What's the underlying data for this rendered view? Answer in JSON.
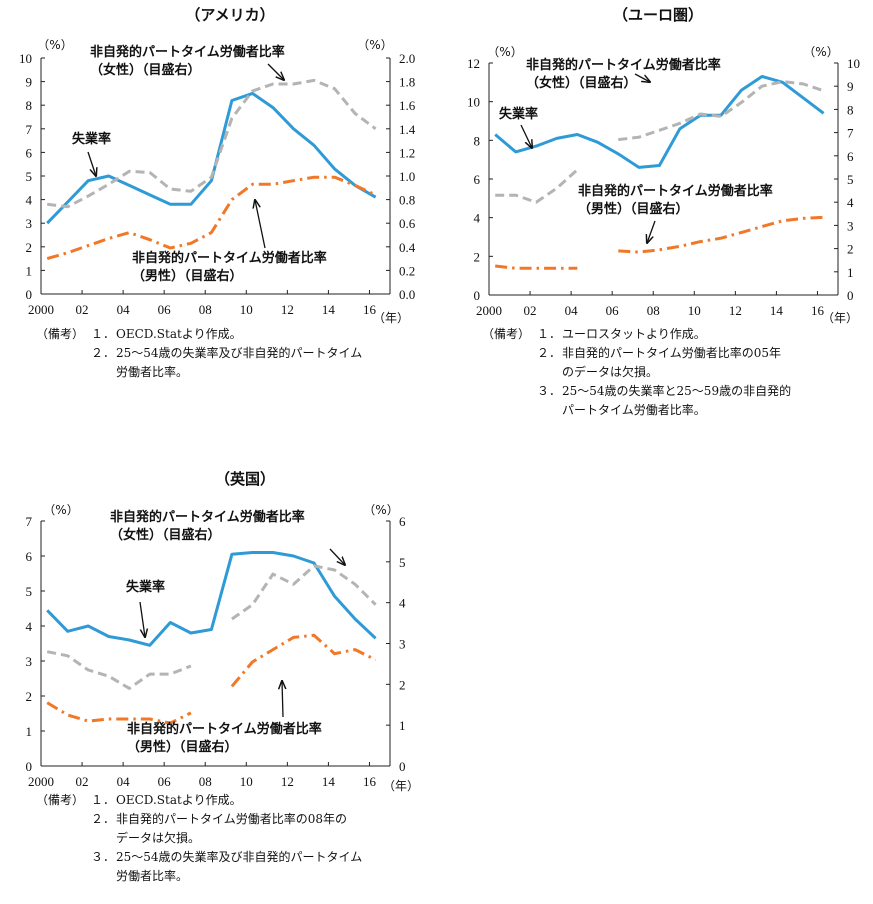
{
  "colors": {
    "unemployment": "#2e9bd6",
    "female": "#b4b4b4",
    "male": "#f07828",
    "axis": "#222222"
  },
  "chart_data": [
    {
      "id": "us",
      "type": "line",
      "title": "（アメリカ）",
      "xlabel_unit": "（年）",
      "left_unit": "（%）",
      "right_unit": "（%）",
      "xlim": [
        2000,
        2017
      ],
      "x_ticks": [
        2000,
        2002,
        2004,
        2006,
        2008,
        2010,
        2012,
        2014,
        2016
      ],
      "x_tick_labels": [
        "2000",
        "02",
        "04",
        "06",
        "08",
        "10",
        "12",
        "14",
        "16"
      ],
      "left_ylim": [
        0,
        10
      ],
      "left_ticks": [
        0,
        1,
        2,
        3,
        4,
        5,
        6,
        7,
        8,
        9,
        10
      ],
      "left_tick_labels": [
        "0",
        "1",
        "2",
        "3",
        "4",
        "5",
        "6",
        "7",
        "8",
        "9",
        "10"
      ],
      "right_ylim": [
        0,
        2
      ],
      "right_ticks": [
        0,
        0.2,
        0.4,
        0.6,
        0.8,
        1.0,
        1.2,
        1.4,
        1.6,
        1.8,
        2.0
      ],
      "right_tick_labels": [
        "0.0",
        "0.2",
        "0.4",
        "0.6",
        "0.8",
        "1.0",
        "1.2",
        "1.4",
        "1.6",
        "1.8",
        "2.0"
      ],
      "series": [
        {
          "name": "失業率",
          "axis": "left",
          "style": "solid",
          "points": [
            [
              2000.3,
              3.0
            ],
            [
              2001.3,
              3.9
            ],
            [
              2002.3,
              4.8
            ],
            [
              2003.3,
              5.0
            ],
            [
              2004.3,
              4.6
            ],
            [
              2005.3,
              4.2
            ],
            [
              2006.3,
              3.8
            ],
            [
              2007.3,
              3.8
            ],
            [
              2008.3,
              4.8
            ],
            [
              2009.3,
              8.2
            ],
            [
              2010.3,
              8.5
            ],
            [
              2011.3,
              7.9
            ],
            [
              2012.3,
              7.0
            ],
            [
              2013.3,
              6.3
            ],
            [
              2014.3,
              5.3
            ],
            [
              2015.3,
              4.6
            ],
            [
              2016.3,
              4.1
            ]
          ]
        },
        {
          "name": "非自発的パートタイム労働者比率（女性）",
          "axis": "right",
          "style": "dashed",
          "points": [
            [
              2000.3,
              0.76
            ],
            [
              2001.3,
              0.74
            ],
            [
              2002.3,
              0.83
            ],
            [
              2003.3,
              0.93
            ],
            [
              2004.3,
              1.04
            ],
            [
              2005.3,
              1.03
            ],
            [
              2006.3,
              0.89
            ],
            [
              2007.3,
              0.87
            ],
            [
              2008.3,
              0.99
            ],
            [
              2009.3,
              1.49
            ],
            [
              2010.3,
              1.72
            ],
            [
              2011.3,
              1.78
            ],
            [
              2012.3,
              1.78
            ],
            [
              2013.3,
              1.81
            ],
            [
              2014.3,
              1.74
            ],
            [
              2015.3,
              1.53
            ],
            [
              2016.3,
              1.4
            ]
          ]
        },
        {
          "name": "非自発的パートタイム労働者比率（男性）",
          "axis": "right",
          "style": "dashdot",
          "points": [
            [
              2000.3,
              0.3
            ],
            [
              2001.3,
              0.35
            ],
            [
              2002.3,
              0.41
            ],
            [
              2003.3,
              0.47
            ],
            [
              2004.3,
              0.52
            ],
            [
              2005.3,
              0.46
            ],
            [
              2006.3,
              0.39
            ],
            [
              2007.3,
              0.43
            ],
            [
              2008.3,
              0.52
            ],
            [
              2009.3,
              0.8
            ],
            [
              2010.3,
              0.93
            ],
            [
              2011.3,
              0.93
            ],
            [
              2012.3,
              0.96
            ],
            [
              2013.3,
              0.99
            ],
            [
              2014.3,
              0.99
            ],
            [
              2015.3,
              0.92
            ],
            [
              2016.3,
              0.84
            ]
          ]
        }
      ],
      "annotations": [
        {
          "lines": [
            "非自発的パートタイム労働者比率",
            "（女性）（目盛右）"
          ]
        },
        {
          "lines": [
            "失業率"
          ]
        },
        {
          "lines": [
            "非自発的パートタイム労働者比率",
            "（男性）（目盛右）"
          ]
        }
      ],
      "notes": [
        {
          "label": "（備考）",
          "num": "１．",
          "text": "OECD.Statより作成。",
          "cont": ""
        },
        {
          "label": "",
          "num": "２．",
          "text": "25～54歳の失業率及び非自発的パートタイム",
          "cont": "労働者比率。"
        }
      ]
    },
    {
      "id": "eu",
      "type": "line",
      "title": "（ユーロ圏）",
      "xlabel_unit": "（年）",
      "left_unit": "（%）",
      "right_unit": "（%）",
      "xlim": [
        2000,
        2017
      ],
      "x_ticks": [
        2000,
        2002,
        2004,
        2006,
        2008,
        2010,
        2012,
        2014,
        2016
      ],
      "x_tick_labels": [
        "2000",
        "02",
        "04",
        "06",
        "08",
        "10",
        "12",
        "14",
        "16"
      ],
      "left_ylim": [
        0,
        12
      ],
      "left_ticks": [
        0,
        2,
        4,
        6,
        8,
        10,
        12
      ],
      "left_tick_labels": [
        "0",
        "2",
        "4",
        "6",
        "8",
        "10",
        "12"
      ],
      "right_ylim": [
        0,
        10
      ],
      "right_ticks": [
        0,
        1,
        2,
        3,
        4,
        5,
        6,
        7,
        8,
        9,
        10
      ],
      "right_tick_labels": [
        "0",
        "1",
        "2",
        "3",
        "4",
        "5",
        "6",
        "7",
        "8",
        "9",
        "10"
      ],
      "series": [
        {
          "name": "失業率",
          "axis": "left",
          "style": "solid",
          "points": [
            [
              2000.3,
              8.3
            ],
            [
              2001.3,
              7.4
            ],
            [
              2002.3,
              7.7
            ],
            [
              2003.3,
              8.1
            ],
            [
              2004.3,
              8.3
            ],
            [
              2005.3,
              7.9
            ],
            [
              2006.3,
              7.3
            ],
            [
              2007.3,
              6.6
            ],
            [
              2008.3,
              6.7
            ],
            [
              2009.3,
              8.6
            ],
            [
              2010.3,
              9.3
            ],
            [
              2011.3,
              9.3
            ],
            [
              2012.3,
              10.6
            ],
            [
              2013.3,
              11.3
            ],
            [
              2014.3,
              11.0
            ],
            [
              2015.3,
              10.2
            ],
            [
              2016.3,
              9.4
            ]
          ]
        },
        {
          "name": "非自発的パートタイム労働者比率（女性）",
          "axis": "right",
          "style": "dashed",
          "segments": [
            [
              [
                2000.3,
                4.3
              ],
              [
                2001.3,
                4.3
              ],
              [
                2002.3,
                4.0
              ],
              [
                2003.3,
                4.6
              ],
              [
                2004.3,
                5.4
              ]
            ],
            [
              [
                2006.3,
                6.7
              ],
              [
                2007.3,
                6.8
              ],
              [
                2008.3,
                7.1
              ],
              [
                2009.3,
                7.4
              ],
              [
                2010.3,
                7.8
              ],
              [
                2011.3,
                7.7
              ],
              [
                2012.3,
                8.3
              ],
              [
                2013.3,
                9.0
              ],
              [
                2014.3,
                9.2
              ],
              [
                2015.3,
                9.1
              ],
              [
                2016.3,
                8.8
              ]
            ]
          ]
        },
        {
          "name": "非自発的パートタイム労働者比率（男性）",
          "axis": "right",
          "style": "dashdot",
          "segments": [
            [
              [
                2000.3,
                1.25
              ],
              [
                2001.3,
                1.15
              ],
              [
                2002.3,
                1.15
              ],
              [
                2003.3,
                1.15
              ],
              [
                2004.3,
                1.15
              ]
            ],
            [
              [
                2006.3,
                1.9
              ],
              [
                2007.3,
                1.85
              ],
              [
                2008.3,
                1.95
              ],
              [
                2009.3,
                2.1
              ],
              [
                2010.3,
                2.3
              ],
              [
                2011.3,
                2.45
              ],
              [
                2012.3,
                2.7
              ],
              [
                2013.3,
                2.95
              ],
              [
                2014.3,
                3.2
              ],
              [
                2015.3,
                3.3
              ],
              [
                2016.3,
                3.35
              ]
            ]
          ]
        }
      ],
      "annotations": [
        {
          "lines": [
            "非自発的パートタイム労働者比率",
            "（女性）（目盛右）"
          ]
        },
        {
          "lines": [
            "失業率"
          ]
        },
        {
          "lines": [
            "非自発的パートタイム労働者比率",
            "（男性）（目盛右）"
          ]
        }
      ],
      "notes": [
        {
          "label": "（備考）",
          "num": "１．",
          "text": "ユーロスタットより作成。",
          "cont": ""
        },
        {
          "label": "",
          "num": "２．",
          "text": "非自発的パートタイム労働者比率の05年",
          "cont": "のデータは欠損。"
        },
        {
          "label": "",
          "num": "３．",
          "text": "25～54歳の失業率と25～59歳の非自発的",
          "cont": "パートタイム労働者比率。"
        }
      ]
    },
    {
      "id": "uk",
      "type": "line",
      "title": "（英国）",
      "xlabel_unit": "（年）",
      "left_unit": "（%）",
      "right_unit": "（%）",
      "xlim": [
        2000,
        2017
      ],
      "x_ticks": [
        2000,
        2002,
        2004,
        2006,
        2008,
        2010,
        2012,
        2014,
        2016
      ],
      "x_tick_labels": [
        "2000",
        "02",
        "04",
        "06",
        "08",
        "10",
        "12",
        "14",
        "16"
      ],
      "left_ylim": [
        0,
        7
      ],
      "left_ticks": [
        0,
        1,
        2,
        3,
        4,
        5,
        6,
        7
      ],
      "left_tick_labels": [
        "0",
        "1",
        "2",
        "3",
        "4",
        "5",
        "6",
        "7"
      ],
      "right_ylim": [
        0,
        6
      ],
      "right_ticks": [
        0,
        1,
        2,
        3,
        4,
        5,
        6
      ],
      "right_tick_labels": [
        "0",
        "1",
        "2",
        "3",
        "4",
        "5",
        "6"
      ],
      "series": [
        {
          "name": "失業率",
          "axis": "left",
          "style": "solid",
          "points": [
            [
              2000.3,
              4.45
            ],
            [
              2001.3,
              3.85
            ],
            [
              2002.3,
              4.0
            ],
            [
              2003.3,
              3.7
            ],
            [
              2004.3,
              3.6
            ],
            [
              2005.3,
              3.45
            ],
            [
              2006.3,
              4.1
            ],
            [
              2007.3,
              3.8
            ],
            [
              2008.3,
              3.9
            ],
            [
              2009.3,
              6.05
            ],
            [
              2010.3,
              6.1
            ],
            [
              2011.3,
              6.1
            ],
            [
              2012.3,
              6.0
            ],
            [
              2013.3,
              5.8
            ],
            [
              2014.3,
              4.85
            ],
            [
              2015.3,
              4.2
            ],
            [
              2016.3,
              3.65
            ]
          ]
        },
        {
          "name": "非自発的パートタイム労働者比率（女性）",
          "axis": "right",
          "style": "dashed",
          "segments": [
            [
              [
                2000.3,
                2.8
              ],
              [
                2001.3,
                2.7
              ],
              [
                2002.3,
                2.35
              ],
              [
                2003.3,
                2.2
              ],
              [
                2004.3,
                1.9
              ],
              [
                2005.3,
                2.25
              ],
              [
                2006.3,
                2.25
              ],
              [
                2007.3,
                2.45
              ]
            ],
            [
              [
                2009.3,
                3.6
              ],
              [
                2010.3,
                3.95
              ],
              [
                2011.3,
                4.7
              ],
              [
                2012.3,
                4.45
              ],
              [
                2013.3,
                4.9
              ],
              [
                2014.3,
                4.8
              ],
              [
                2015.3,
                4.45
              ],
              [
                2016.3,
                3.95
              ]
            ]
          ]
        },
        {
          "name": "非自発的パートタイム労働者比率（男性）",
          "axis": "right",
          "style": "dashdot",
          "segments": [
            [
              [
                2000.3,
                1.55
              ],
              [
                2001.3,
                1.25
              ],
              [
                2002.3,
                1.1
              ],
              [
                2003.3,
                1.15
              ],
              [
                2004.3,
                1.15
              ],
              [
                2005.3,
                1.15
              ],
              [
                2006.3,
                1.05
              ],
              [
                2007.3,
                1.3
              ]
            ],
            [
              [
                2009.3,
                1.95
              ],
              [
                2010.3,
                2.55
              ],
              [
                2011.3,
                2.85
              ],
              [
                2012.3,
                3.15
              ],
              [
                2013.3,
                3.2
              ],
              [
                2014.3,
                2.75
              ],
              [
                2015.3,
                2.85
              ],
              [
                2016.3,
                2.6
              ]
            ]
          ]
        }
      ],
      "annotations": [
        {
          "lines": [
            "非自発的パートタイム労働者比率",
            "（女性）（目盛右）"
          ]
        },
        {
          "lines": [
            "失業率"
          ]
        },
        {
          "lines": [
            "非自発的パートタイム労働者比率",
            "（男性）（目盛右）"
          ]
        }
      ],
      "notes": [
        {
          "label": "（備考）",
          "num": "１．",
          "text": "OECD.Statより作成。",
          "cont": ""
        },
        {
          "label": "",
          "num": "２．",
          "text": "非自発的パートタイム労働者比率の08年の",
          "cont": "データは欠損。"
        },
        {
          "label": "",
          "num": "３．",
          "text": "25～54歳の失業率及び非自発的パートタイム",
          "cont": "労働者比率。"
        }
      ]
    }
  ]
}
